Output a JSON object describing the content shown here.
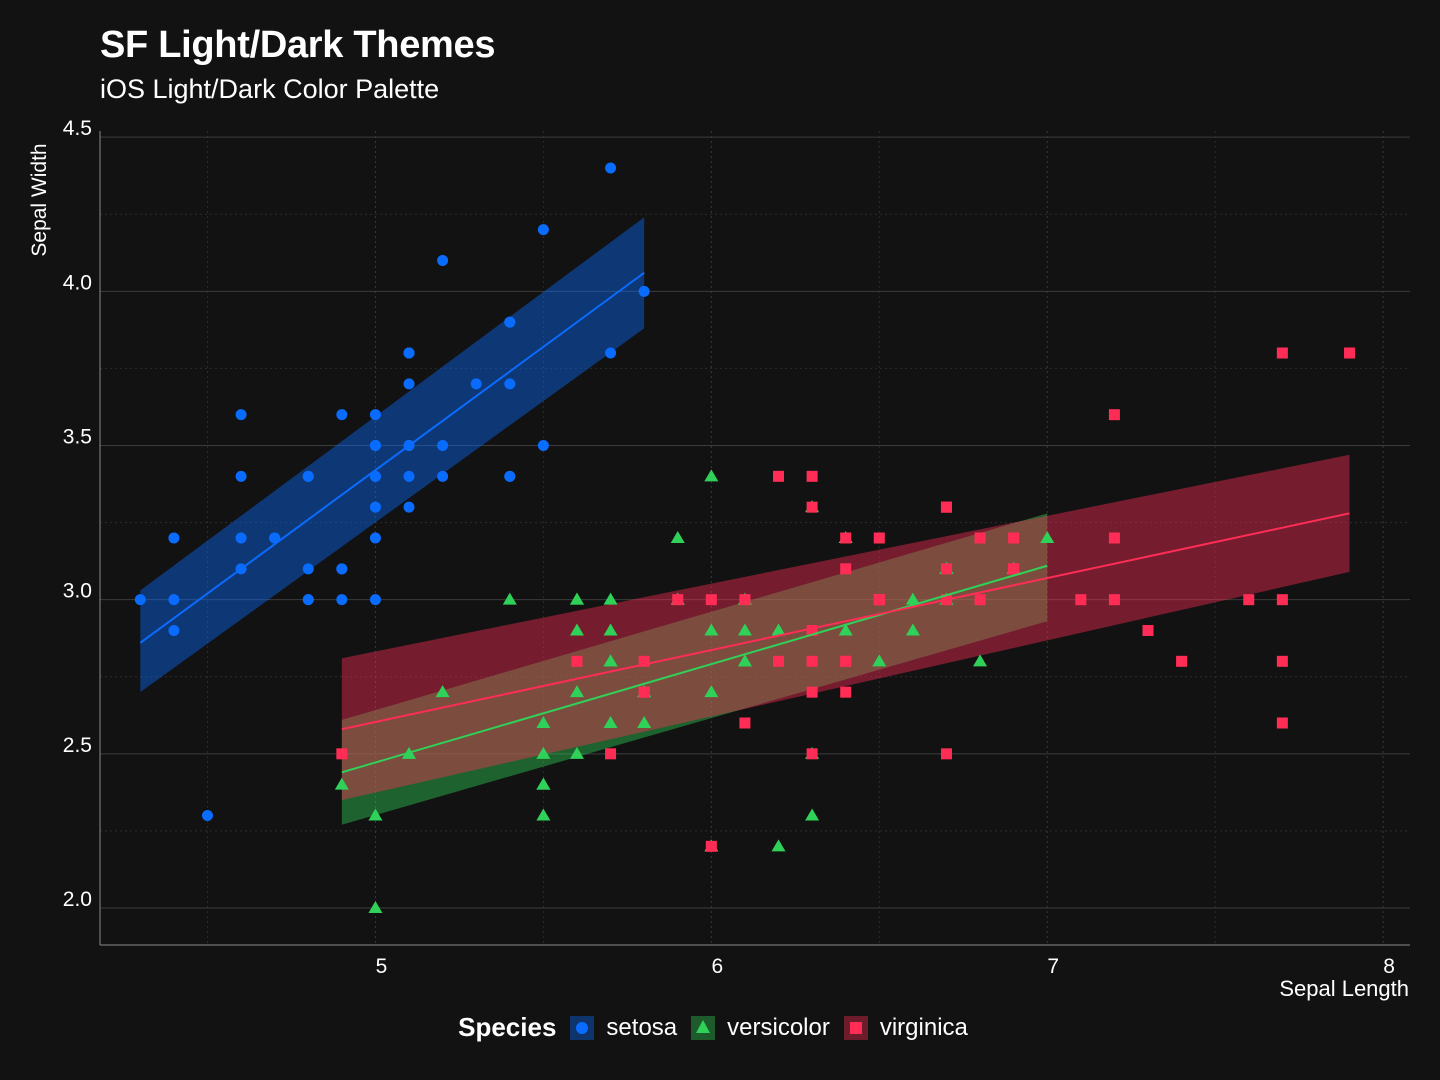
{
  "header": {
    "title": "SF Light/Dark Themes",
    "subtitle": "iOS Light/Dark Color Palette"
  },
  "legend": {
    "title": "Species",
    "items": [
      {
        "label": "setosa",
        "color": "#0A6CFF",
        "shape": "circle"
      },
      {
        "label": "versicolor",
        "color": "#30D158",
        "shape": "triangle"
      },
      {
        "label": "virginica",
        "color": "#FF2D55",
        "shape": "square"
      }
    ]
  },
  "chart_data": {
    "type": "scatter",
    "title": "SF Light/Dark Themes",
    "subtitle": "iOS Light/Dark Color Palette",
    "xlabel": "Sepal Length",
    "ylabel": "Sepal Width",
    "xlim": [
      4.18,
      8.08
    ],
    "ylim": [
      1.88,
      4.52
    ],
    "xticks": [
      5,
      6,
      7,
      8
    ],
    "xtick_labels": [
      "5",
      "6",
      "7",
      "8"
    ],
    "yticks": [
      2.0,
      2.5,
      3.0,
      3.5,
      4.0,
      4.5
    ],
    "ytick_labels": [
      "2.0",
      "2.5",
      "3.0",
      "3.5",
      "4.0",
      "4.5"
    ],
    "grid": true,
    "legend_position": "bottom",
    "series": [
      {
        "name": "setosa",
        "color": "#0A6CFF",
        "marker": "circle",
        "points": [
          [
            5.1,
            3.5
          ],
          [
            4.9,
            3.0
          ],
          [
            4.7,
            3.2
          ],
          [
            4.6,
            3.1
          ],
          [
            5.0,
            3.6
          ],
          [
            5.4,
            3.9
          ],
          [
            4.6,
            3.4
          ],
          [
            5.0,
            3.4
          ],
          [
            4.4,
            2.9
          ],
          [
            4.9,
            3.1
          ],
          [
            5.4,
            3.7
          ],
          [
            4.8,
            3.4
          ],
          [
            4.8,
            3.0
          ],
          [
            4.3,
            3.0
          ],
          [
            5.8,
            4.0
          ],
          [
            5.7,
            4.4
          ],
          [
            5.4,
            3.9
          ],
          [
            5.1,
            3.5
          ],
          [
            5.7,
            3.8
          ],
          [
            5.1,
            3.8
          ],
          [
            5.4,
            3.4
          ],
          [
            5.1,
            3.7
          ],
          [
            4.6,
            3.6
          ],
          [
            5.1,
            3.3
          ],
          [
            4.8,
            3.4
          ],
          [
            5.0,
            3.0
          ],
          [
            5.0,
            3.4
          ],
          [
            5.2,
            3.5
          ],
          [
            5.2,
            3.4
          ],
          [
            4.7,
            3.2
          ],
          [
            4.8,
            3.1
          ],
          [
            5.4,
            3.4
          ],
          [
            5.2,
            4.1
          ],
          [
            5.5,
            4.2
          ],
          [
            4.9,
            3.1
          ],
          [
            5.0,
            3.2
          ],
          [
            5.5,
            3.5
          ],
          [
            4.9,
            3.6
          ],
          [
            4.4,
            3.0
          ],
          [
            5.1,
            3.4
          ],
          [
            5.0,
            3.5
          ],
          [
            4.5,
            2.3
          ],
          [
            4.4,
            3.2
          ],
          [
            5.0,
            3.5
          ],
          [
            5.1,
            3.8
          ],
          [
            4.8,
            3.0
          ],
          [
            5.1,
            3.8
          ],
          [
            4.6,
            3.2
          ],
          [
            5.3,
            3.7
          ],
          [
            5.0,
            3.3
          ]
        ],
        "fit": {
          "x": [
            4.3,
            5.8
          ],
          "y": [
            2.86,
            4.06
          ]
        },
        "band": {
          "x": [
            4.3,
            5.8
          ],
          "lower": [
            2.7,
            3.88
          ],
          "upper": [
            3.03,
            4.24
          ]
        }
      },
      {
        "name": "versicolor",
        "color": "#30D158",
        "marker": "triangle",
        "points": [
          [
            7.0,
            3.2
          ],
          [
            6.4,
            3.2
          ],
          [
            6.9,
            3.1
          ],
          [
            5.5,
            2.3
          ],
          [
            6.5,
            2.8
          ],
          [
            5.7,
            2.8
          ],
          [
            6.3,
            3.3
          ],
          [
            4.9,
            2.4
          ],
          [
            6.6,
            2.9
          ],
          [
            5.2,
            2.7
          ],
          [
            5.0,
            2.0
          ],
          [
            5.9,
            3.0
          ],
          [
            6.0,
            2.2
          ],
          [
            6.1,
            2.9
          ],
          [
            5.6,
            2.9
          ],
          [
            6.7,
            3.1
          ],
          [
            5.6,
            3.0
          ],
          [
            5.8,
            2.7
          ],
          [
            6.2,
            2.2
          ],
          [
            5.6,
            2.5
          ],
          [
            5.9,
            3.2
          ],
          [
            6.1,
            2.8
          ],
          [
            6.3,
            2.5
          ],
          [
            6.1,
            2.8
          ],
          [
            6.4,
            2.9
          ],
          [
            6.6,
            3.0
          ],
          [
            6.8,
            2.8
          ],
          [
            6.7,
            3.0
          ],
          [
            6.0,
            2.9
          ],
          [
            5.7,
            2.6
          ],
          [
            5.5,
            2.4
          ],
          [
            5.5,
            2.4
          ],
          [
            5.8,
            2.7
          ],
          [
            6.0,
            2.7
          ],
          [
            5.4,
            3.0
          ],
          [
            6.0,
            3.4
          ],
          [
            6.7,
            3.1
          ],
          [
            6.3,
            2.3
          ],
          [
            5.6,
            3.0
          ],
          [
            5.5,
            2.5
          ],
          [
            5.5,
            2.6
          ],
          [
            6.1,
            3.0
          ],
          [
            5.8,
            2.6
          ],
          [
            5.0,
            2.3
          ],
          [
            5.6,
            2.7
          ],
          [
            5.7,
            3.0
          ],
          [
            5.7,
            2.9
          ],
          [
            6.2,
            2.9
          ],
          [
            5.1,
            2.5
          ],
          [
            5.7,
            2.8
          ]
        ],
        "fit": {
          "x": [
            4.9,
            7.0
          ],
          "y": [
            2.44,
            3.11
          ]
        },
        "band": {
          "x": [
            4.9,
            7.0
          ],
          "lower": [
            2.27,
            2.93
          ],
          "upper": [
            2.61,
            3.28
          ]
        }
      },
      {
        "name": "virginica",
        "color": "#FF2D55",
        "marker": "square",
        "points": [
          [
            6.3,
            3.3
          ],
          [
            5.8,
            2.7
          ],
          [
            7.1,
            3.0
          ],
          [
            6.3,
            2.9
          ],
          [
            6.5,
            3.0
          ],
          [
            7.6,
            3.0
          ],
          [
            4.9,
            2.5
          ],
          [
            7.3,
            2.9
          ],
          [
            6.7,
            2.5
          ],
          [
            7.2,
            3.6
          ],
          [
            6.5,
            3.2
          ],
          [
            6.4,
            2.7
          ],
          [
            6.8,
            3.0
          ],
          [
            5.7,
            2.5
          ],
          [
            5.8,
            2.8
          ],
          [
            6.4,
            3.2
          ],
          [
            6.5,
            3.0
          ],
          [
            7.7,
            3.8
          ],
          [
            7.7,
            2.6
          ],
          [
            6.0,
            2.2
          ],
          [
            6.9,
            3.2
          ],
          [
            5.6,
            2.8
          ],
          [
            7.7,
            2.8
          ],
          [
            6.3,
            2.7
          ],
          [
            6.7,
            3.3
          ],
          [
            7.2,
            3.2
          ],
          [
            6.2,
            2.8
          ],
          [
            6.1,
            3.0
          ],
          [
            6.4,
            2.8
          ],
          [
            7.2,
            3.0
          ],
          [
            7.4,
            2.8
          ],
          [
            7.9,
            3.8
          ],
          [
            6.4,
            2.8
          ],
          [
            6.3,
            2.8
          ],
          [
            6.1,
            2.6
          ],
          [
            7.7,
            3.0
          ],
          [
            6.3,
            3.4
          ],
          [
            6.4,
            3.1
          ],
          [
            6.0,
            3.0
          ],
          [
            6.9,
            3.1
          ],
          [
            6.7,
            3.1
          ],
          [
            6.9,
            3.1
          ],
          [
            5.8,
            2.7
          ],
          [
            6.8,
            3.2
          ],
          [
            6.7,
            3.3
          ],
          [
            6.7,
            3.0
          ],
          [
            6.3,
            2.5
          ],
          [
            6.5,
            3.0
          ],
          [
            6.2,
            3.4
          ],
          [
            5.9,
            3.0
          ]
        ],
        "fit": {
          "x": [
            4.9,
            7.9
          ],
          "y": [
            2.58,
            3.28
          ]
        },
        "band": {
          "x": [
            4.9,
            7.9
          ],
          "lower": [
            2.35,
            3.09
          ],
          "upper": [
            2.81,
            3.47
          ]
        }
      }
    ]
  }
}
